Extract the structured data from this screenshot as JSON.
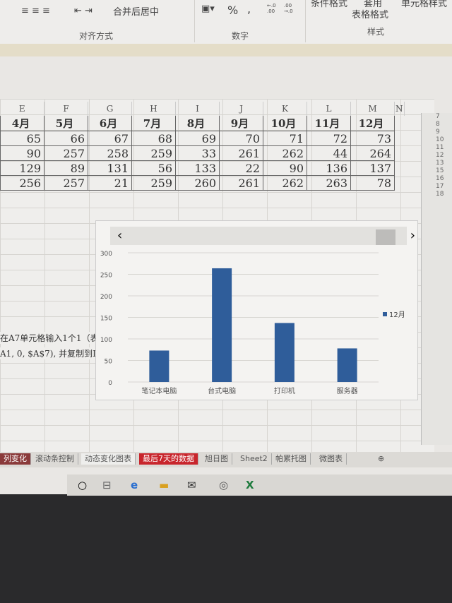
{
  "ribbon": {
    "merge_center": "合并后居中",
    "percent": "%",
    "comma": ",",
    "inc_decimal": "←.0 .00",
    "dec_decimal": ".00 →.0",
    "cond_format": "条件格式",
    "table_apply": "套用",
    "table_format": "表格格式",
    "cell_style": "单元格样式",
    "groups": [
      "对齐方式",
      "数字",
      "样式"
    ]
  },
  "sheet": {
    "columns": [
      "E",
      "F",
      "G",
      "H",
      "I",
      "J",
      "K",
      "L",
      "M",
      "N"
    ],
    "months": [
      "4月",
      "5月",
      "6月",
      "7月",
      "8月",
      "9月",
      "10月",
      "11月",
      "12月"
    ],
    "rows": [
      [
        65,
        66,
        67,
        68,
        69,
        70,
        71,
        72,
        73
      ],
      [
        90,
        257,
        258,
        259,
        33,
        261,
        262,
        44,
        264
      ],
      [
        129,
        89,
        131,
        56,
        133,
        22,
        90,
        136,
        137
      ],
      [
        256,
        257,
        21,
        259,
        260,
        261,
        262,
        263,
        78
      ]
    ],
    "note_line1": "在A7单元格输入1个1（表",
    "note_line2": "A1, 0, $A$7), 并复制到I"
  },
  "side_rows": [
    "7",
    "8",
    "9",
    "10",
    "11",
    "12",
    "13",
    "15",
    "16",
    "17",
    "18"
  ],
  "chart_data": {
    "type": "bar",
    "categories": [
      "笔记本电脑",
      "台式电脑",
      "打印机",
      "服务器"
    ],
    "series": [
      {
        "name": "12月",
        "values": [
          73,
          264,
          137,
          78
        ]
      }
    ],
    "ylim": [
      0,
      300
    ],
    "yticks": [
      0,
      50,
      100,
      150,
      200,
      250,
      300
    ],
    "grid": true,
    "legend": "right",
    "color": "#2f5d9a",
    "scroll_left": "‹",
    "scroll_right": "›"
  },
  "tabs": [
    "列变化",
    "滚动条控制",
    "动态变化图表",
    "最后7天的数据",
    "旭日图",
    "Sheet2",
    "帕累托图",
    "微图表"
  ],
  "add_sheet": "⊕"
}
